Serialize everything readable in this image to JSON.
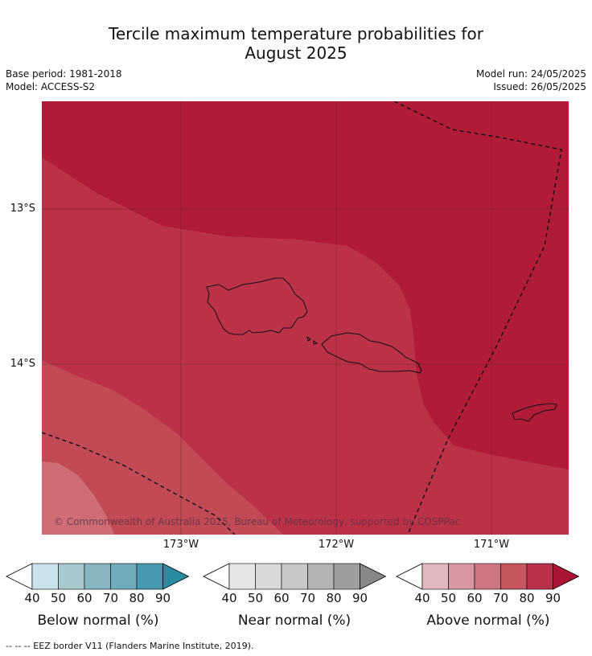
{
  "title_line1": "Tercile maximum temperature probabilities for",
  "title_line2": "August 2025",
  "meta": {
    "base_period": "Base period: 1981-2018",
    "model": "Model: ACCESS-S2",
    "model_run": "Model run: 24/05/2025",
    "issued": "Issued: 26/05/2025"
  },
  "map": {
    "lat_labels": [
      "13°S",
      "14°S"
    ],
    "lon_labels": [
      "173°W",
      "172°W",
      "171°W"
    ],
    "copyright": "© Commonwealth of Australia 2025, Bureau of Meteorology, supported by COSPPac",
    "region_colors": {
      "above_90": "#b01c38",
      "above_80": "#bb3248",
      "above_70": "#c24a56",
      "above_60": "#ce6d75"
    }
  },
  "legends": [
    {
      "title": "Below normal (%)",
      "ticks": [
        "40",
        "50",
        "60",
        "70",
        "80",
        "90"
      ],
      "colors": [
        "#ffffff",
        "#c9e1e9",
        "#a7c9cf",
        "#8ab6c2",
        "#6eacbc",
        "#4699ae",
        "#2a8ba3"
      ]
    },
    {
      "title": "Near normal (%)",
      "ticks": [
        "40",
        "50",
        "60",
        "70",
        "80",
        "90"
      ],
      "colors": [
        "#ffffff",
        "#e6e6e6",
        "#d9d9d9",
        "#c8c8c8",
        "#b3b3b3",
        "#9e9e9e",
        "#878787"
      ]
    },
    {
      "title": "Above normal (%)",
      "ticks": [
        "40",
        "50",
        "60",
        "70",
        "80",
        "90"
      ],
      "colors": [
        "#ffffff",
        "#e1b8be",
        "#d6979f",
        "#cd7681",
        "#c5565f",
        "#b9304b",
        "#aa1535"
      ]
    }
  ],
  "footnote": "--  --  -- EEZ border V11 (Flanders Marine Institute, 2019)."
}
